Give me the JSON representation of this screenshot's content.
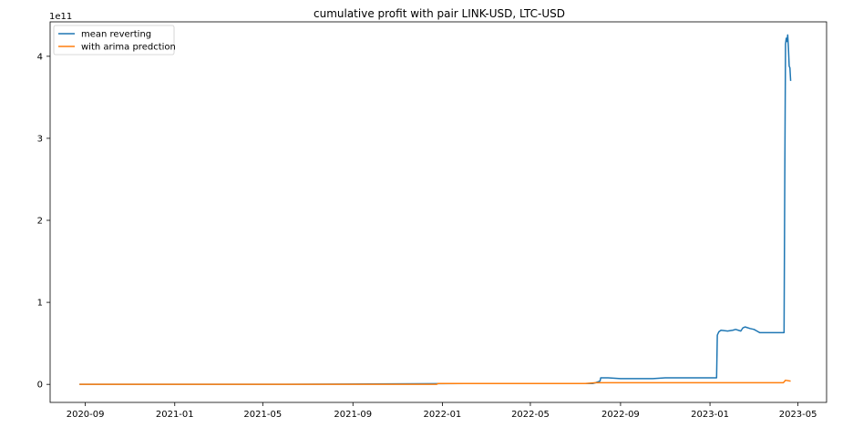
{
  "chart_data": {
    "type": "line",
    "title": "cumulative profit with pair LINK-USD, LTC-USD",
    "xlabel": "",
    "ylabel": "",
    "y_offset_text": "1e11",
    "x_type": "date",
    "xlim": [
      "2020-07-15",
      "2023-06-09"
    ],
    "ylim": [
      -0.22,
      4.42
    ],
    "x_ticks": [
      "2020-09-01",
      "2021-01-01",
      "2021-05-01",
      "2021-09-01",
      "2022-01-01",
      "2022-05-01",
      "2022-09-01",
      "2023-01-01",
      "2023-05-01"
    ],
    "x_tick_labels": [
      "2020-09",
      "2021-01",
      "2021-05",
      "2021-09",
      "2022-01",
      "2022-05",
      "2022-09",
      "2023-01",
      "2023-05"
    ],
    "y_ticks": [
      0,
      1,
      2,
      3,
      4
    ],
    "y_tick_labels": [
      "0",
      "1",
      "2",
      "3",
      "4"
    ],
    "grid": false,
    "legend_position": "top-left",
    "series": [
      {
        "name": "mean reverting",
        "color": "#1f77b4",
        "points": [
          [
            "2020-08-24",
            0.0
          ],
          [
            "2021-06-01",
            0.0
          ],
          [
            "2022-02-01",
            0.01
          ],
          [
            "2022-07-25",
            0.01
          ],
          [
            "2022-07-29",
            0.02
          ],
          [
            "2022-08-04",
            0.04
          ],
          [
            "2022-08-05",
            0.08
          ],
          [
            "2022-08-15",
            0.08
          ],
          [
            "2022-09-01",
            0.07
          ],
          [
            "2022-10-15",
            0.07
          ],
          [
            "2022-11-01",
            0.08
          ],
          [
            "2022-12-01",
            0.08
          ],
          [
            "2023-01-10",
            0.08
          ],
          [
            "2023-01-11",
            0.6
          ],
          [
            "2023-01-13",
            0.64
          ],
          [
            "2023-01-16",
            0.66
          ],
          [
            "2023-01-25",
            0.65
          ],
          [
            "2023-02-01",
            0.66
          ],
          [
            "2023-02-05",
            0.67
          ],
          [
            "2023-02-12",
            0.65
          ],
          [
            "2023-02-15",
            0.69
          ],
          [
            "2023-02-18",
            0.7
          ],
          [
            "2023-02-25",
            0.68
          ],
          [
            "2023-03-02",
            0.67
          ],
          [
            "2023-03-06",
            0.65
          ],
          [
            "2023-03-10",
            0.63
          ],
          [
            "2023-04-12",
            0.63
          ],
          [
            "2023-04-13",
            2.5
          ],
          [
            "2023-04-14",
            4.15
          ],
          [
            "2023-04-15",
            4.22
          ],
          [
            "2023-04-16",
            4.18
          ],
          [
            "2023-04-17",
            4.26
          ],
          [
            "2023-04-18",
            4.1
          ],
          [
            "2023-04-19",
            3.88
          ],
          [
            "2023-04-20",
            3.86
          ],
          [
            "2023-04-21",
            3.7
          ]
        ]
      },
      {
        "name": "with arima predction",
        "color": "#ff7f0e",
        "points": [
          [
            "2020-08-24",
            0.0
          ],
          [
            "2021-06-01",
            0.0
          ],
          [
            "2021-12-24",
            0.0
          ],
          [
            "2021-12-26",
            0.01
          ],
          [
            "2022-07-15",
            0.01
          ],
          [
            "2022-07-29",
            0.02
          ],
          [
            "2023-04-11",
            0.02
          ],
          [
            "2023-04-13",
            0.04
          ],
          [
            "2023-04-14",
            0.05
          ],
          [
            "2023-04-21",
            0.04
          ]
        ]
      }
    ]
  }
}
